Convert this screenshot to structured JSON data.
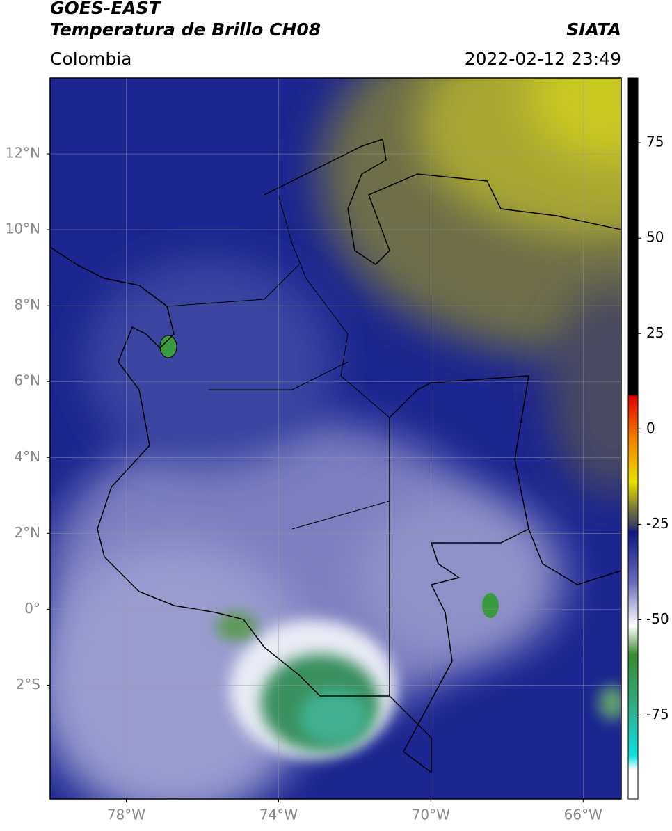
{
  "header": {
    "title_line1": "GOES-EAST",
    "title_line2": "Temperatura de Brillo CH08",
    "source": "SIATA",
    "region": "Colombia",
    "datetime": "2022-02-12 23:49"
  },
  "map": {
    "xlim": [
      -80,
      -65
    ],
    "ylim": [
      -5,
      14
    ],
    "xticks": [
      {
        "value": -78,
        "label": "78°W"
      },
      {
        "value": -74,
        "label": "74°W"
      },
      {
        "value": -70,
        "label": "70°W"
      },
      {
        "value": -66,
        "label": "66°W"
      }
    ],
    "yticks": [
      {
        "value": 12,
        "label": "12°N"
      },
      {
        "value": 10,
        "label": "10°N"
      },
      {
        "value": 8,
        "label": "8°N"
      },
      {
        "value": 6,
        "label": "6°N"
      },
      {
        "value": 4,
        "label": "4°N"
      },
      {
        "value": 2,
        "label": "2°N"
      },
      {
        "value": 0,
        "label": "0°"
      },
      {
        "value": -2,
        "label": "2°S"
      }
    ],
    "grid": true
  },
  "colorbar": {
    "lim": [
      -97,
      92
    ],
    "ticks": [
      75,
      50,
      25,
      0,
      -25,
      -50,
      -75
    ]
  }
}
